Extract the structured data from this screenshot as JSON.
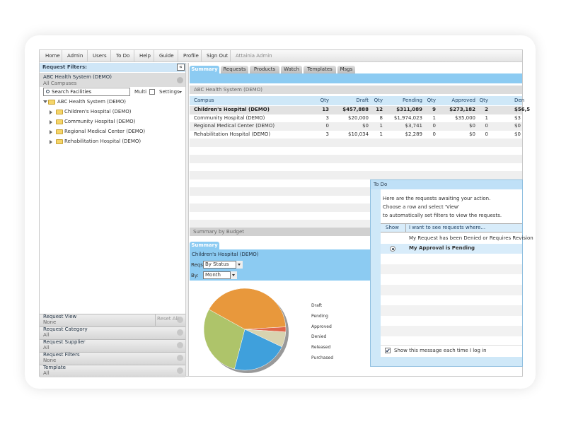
{
  "menu": [
    "Home",
    "Admin",
    "Users",
    "To Do",
    "Help",
    "Guide",
    "Profile",
    "Sign Out"
  ],
  "user": "Attainia Admin",
  "filters": {
    "title": "Request Filters:",
    "system": "ABC Health System (DEMO)",
    "scope": "All Campuses",
    "search": "Search Facilities",
    "multi": "Multi",
    "settings": "Settings",
    "tree_root": "ABC Health System (DEMO)",
    "tree_children": [
      "Children's Hospital (DEMO)",
      "Community Hospital (DEMO)",
      "Regional Medical Center (DEMO)",
      "Rehabilitation Hospital (DEMO)"
    ],
    "reset": "Reset All",
    "sections": [
      {
        "label": "Request View",
        "value": "None"
      },
      {
        "label": "Request Category",
        "value": "All"
      },
      {
        "label": "Request Supplier",
        "value": "All"
      },
      {
        "label": "Request Filters",
        "value": "None"
      },
      {
        "label": "Template",
        "value": "All"
      }
    ]
  },
  "tabs": [
    "Summary",
    "Requests",
    "Products",
    "Watch",
    "Templates",
    "Msgs"
  ],
  "grid": {
    "title": "ABC Health System (DEMO)",
    "columns": [
      "Campus",
      "Qty",
      "Draft",
      "Qty",
      "Pending",
      "Qty",
      "Approved",
      "Qty",
      "Den"
    ],
    "rows": [
      [
        "Children's Hospital (DEMO)",
        "13",
        "$457,888",
        "12",
        "$311,089",
        "9",
        "$273,182",
        "2",
        "$56,5"
      ],
      [
        "Community Hospital (DEMO)",
        "3",
        "$20,000",
        "8",
        "$1,974,023",
        "1",
        "$35,000",
        "1",
        "$3"
      ],
      [
        "Regional Medical Center (DEMO)",
        "0",
        "$0",
        "1",
        "$3,741",
        "0",
        "$0",
        "0",
        "$0"
      ],
      [
        "Rehabilitation Hospital (DEMO)",
        "3",
        "$10,034",
        "1",
        "$2,289",
        "0",
        "$0",
        "0",
        "$0"
      ]
    ]
  },
  "budget_title": "Summary by Budget",
  "summary": {
    "tab": "Summary",
    "facility": "Children's Hospital (DEMO)",
    "reqs_label": "Reqs:",
    "reqs_value": "By Status",
    "by_label": "By:",
    "by_value": "Month",
    "legend": [
      "Draft",
      "Pending",
      "Approved",
      "Denied",
      "Released",
      "Purchased"
    ],
    "pie": {
      "values": [
        41,
        2,
        6,
        22,
        29
      ],
      "colors": [
        "#e8983c",
        "#e0664a",
        "#d8d3b0",
        "#3fa0dc",
        "#aec46a"
      ]
    }
  },
  "todo": {
    "title": "To Do",
    "lines": [
      "Here are the requests awaiting your action.",
      "Choose a row and select 'View'",
      "to automatically set filters to view the requests."
    ],
    "col_show": "Show",
    "col_where": "I want to see requests where...",
    "rows": [
      "My Request has been Denied or Requires Revision",
      "My Approval is Pending"
    ],
    "footer": "Show this message each time I log in"
  }
}
